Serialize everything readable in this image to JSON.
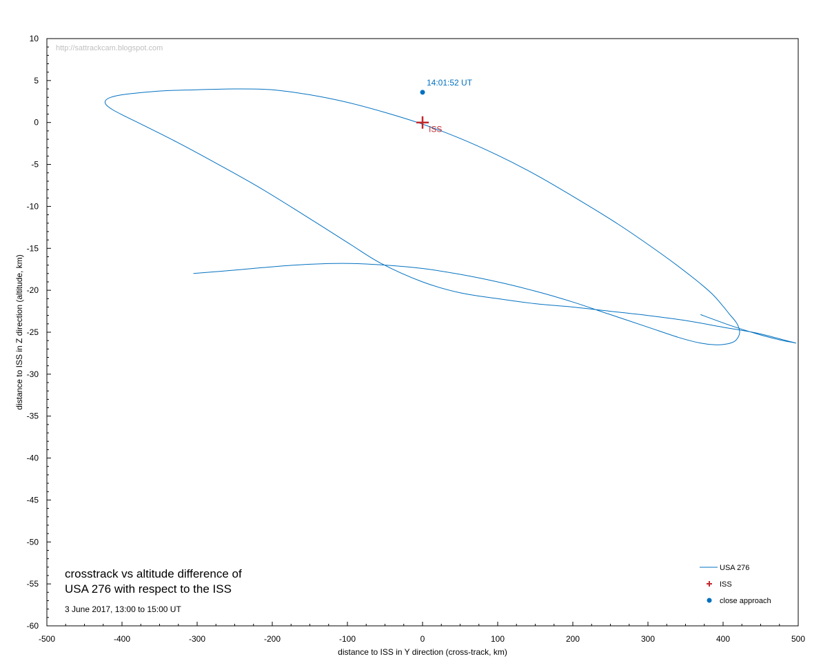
{
  "chart_data": {
    "type": "line",
    "title_lines": [
      "crosstrack vs altitude difference of",
      "USA 276 with respect to the ISS"
    ],
    "subtitle": "3 June 2017, 13:00 to 15:00 UT",
    "watermark": "http://sattrackcam.blogspot.com",
    "xlabel": "distance to ISS in Y direction (cross-track, km)",
    "ylabel": "distance to ISS in Z direction (altitude, km)",
    "xlim": [
      -500,
      500
    ],
    "ylim": [
      -60,
      10
    ],
    "xticks": [
      "-500",
      "-400",
      "-300",
      "-200",
      "-100",
      "0",
      "100",
      "200",
      "300",
      "400",
      "500"
    ],
    "yticks": [
      "10",
      "5",
      "0",
      "-5",
      "-10",
      "-15",
      "-20",
      "-25",
      "-30",
      "-35",
      "-40",
      "-45",
      "-50",
      "-55",
      "-60"
    ],
    "legend_position": "bottom-right",
    "series": [
      {
        "name": "USA 276",
        "color": "#0070c0",
        "x": [
          -305,
          -250,
          -200,
          -150,
          -100,
          -50,
          0,
          50,
          100,
          150,
          200,
          250,
          300,
          340,
          370,
          390,
          405,
          415,
          420,
          422,
          418,
          408,
          400,
          385,
          360,
          320,
          260,
          200,
          150,
          100,
          50,
          0,
          -50,
          -100,
          -150,
          -200,
          -250,
          -300,
          -340,
          -370,
          -400,
          -415,
          -422,
          -421,
          -412,
          -395,
          -370,
          -330,
          -280,
          -220,
          -160,
          -100,
          -55,
          0,
          50,
          100,
          150,
          200,
          250,
          300,
          350,
          400,
          445,
          480,
          493,
          497,
          492,
          485,
          470,
          445,
          410,
          370
        ],
        "y": [
          -18.0,
          -17.6,
          -17.2,
          -16.9,
          -16.8,
          -17.0,
          -17.4,
          -18.1,
          -19.0,
          -20.1,
          -21.4,
          -22.9,
          -24.4,
          -25.6,
          -26.3,
          -26.5,
          -26.4,
          -26.1,
          -25.6,
          -24.9,
          -23.9,
          -22.8,
          -21.9,
          -20.4,
          -18.5,
          -15.8,
          -12.1,
          -8.8,
          -6.2,
          -3.9,
          -1.9,
          -0.2,
          1.2,
          2.4,
          3.3,
          3.9,
          4.0,
          3.9,
          3.8,
          3.6,
          3.3,
          3.0,
          2.6,
          2.1,
          1.5,
          0.7,
          -0.4,
          -2.2,
          -4.6,
          -7.6,
          -10.9,
          -14.3,
          -16.8,
          -19.0,
          -20.3,
          -21.0,
          -21.6,
          -22.0,
          -22.5,
          -23.0,
          -23.6,
          -24.4,
          -25.1,
          -25.9,
          -26.2,
          -26.3,
          -26.2,
          -26.1,
          -25.8,
          -25.2,
          -24.2,
          -22.9
        ]
      }
    ],
    "iss_marker": {
      "name": "ISS",
      "x": 0,
      "y": 0,
      "color": "#c0282d"
    },
    "close_approach": {
      "name": "close approach",
      "label": "14:01:52 UT",
      "x": 0,
      "y": 3.6,
      "color": "#0070c0"
    }
  }
}
